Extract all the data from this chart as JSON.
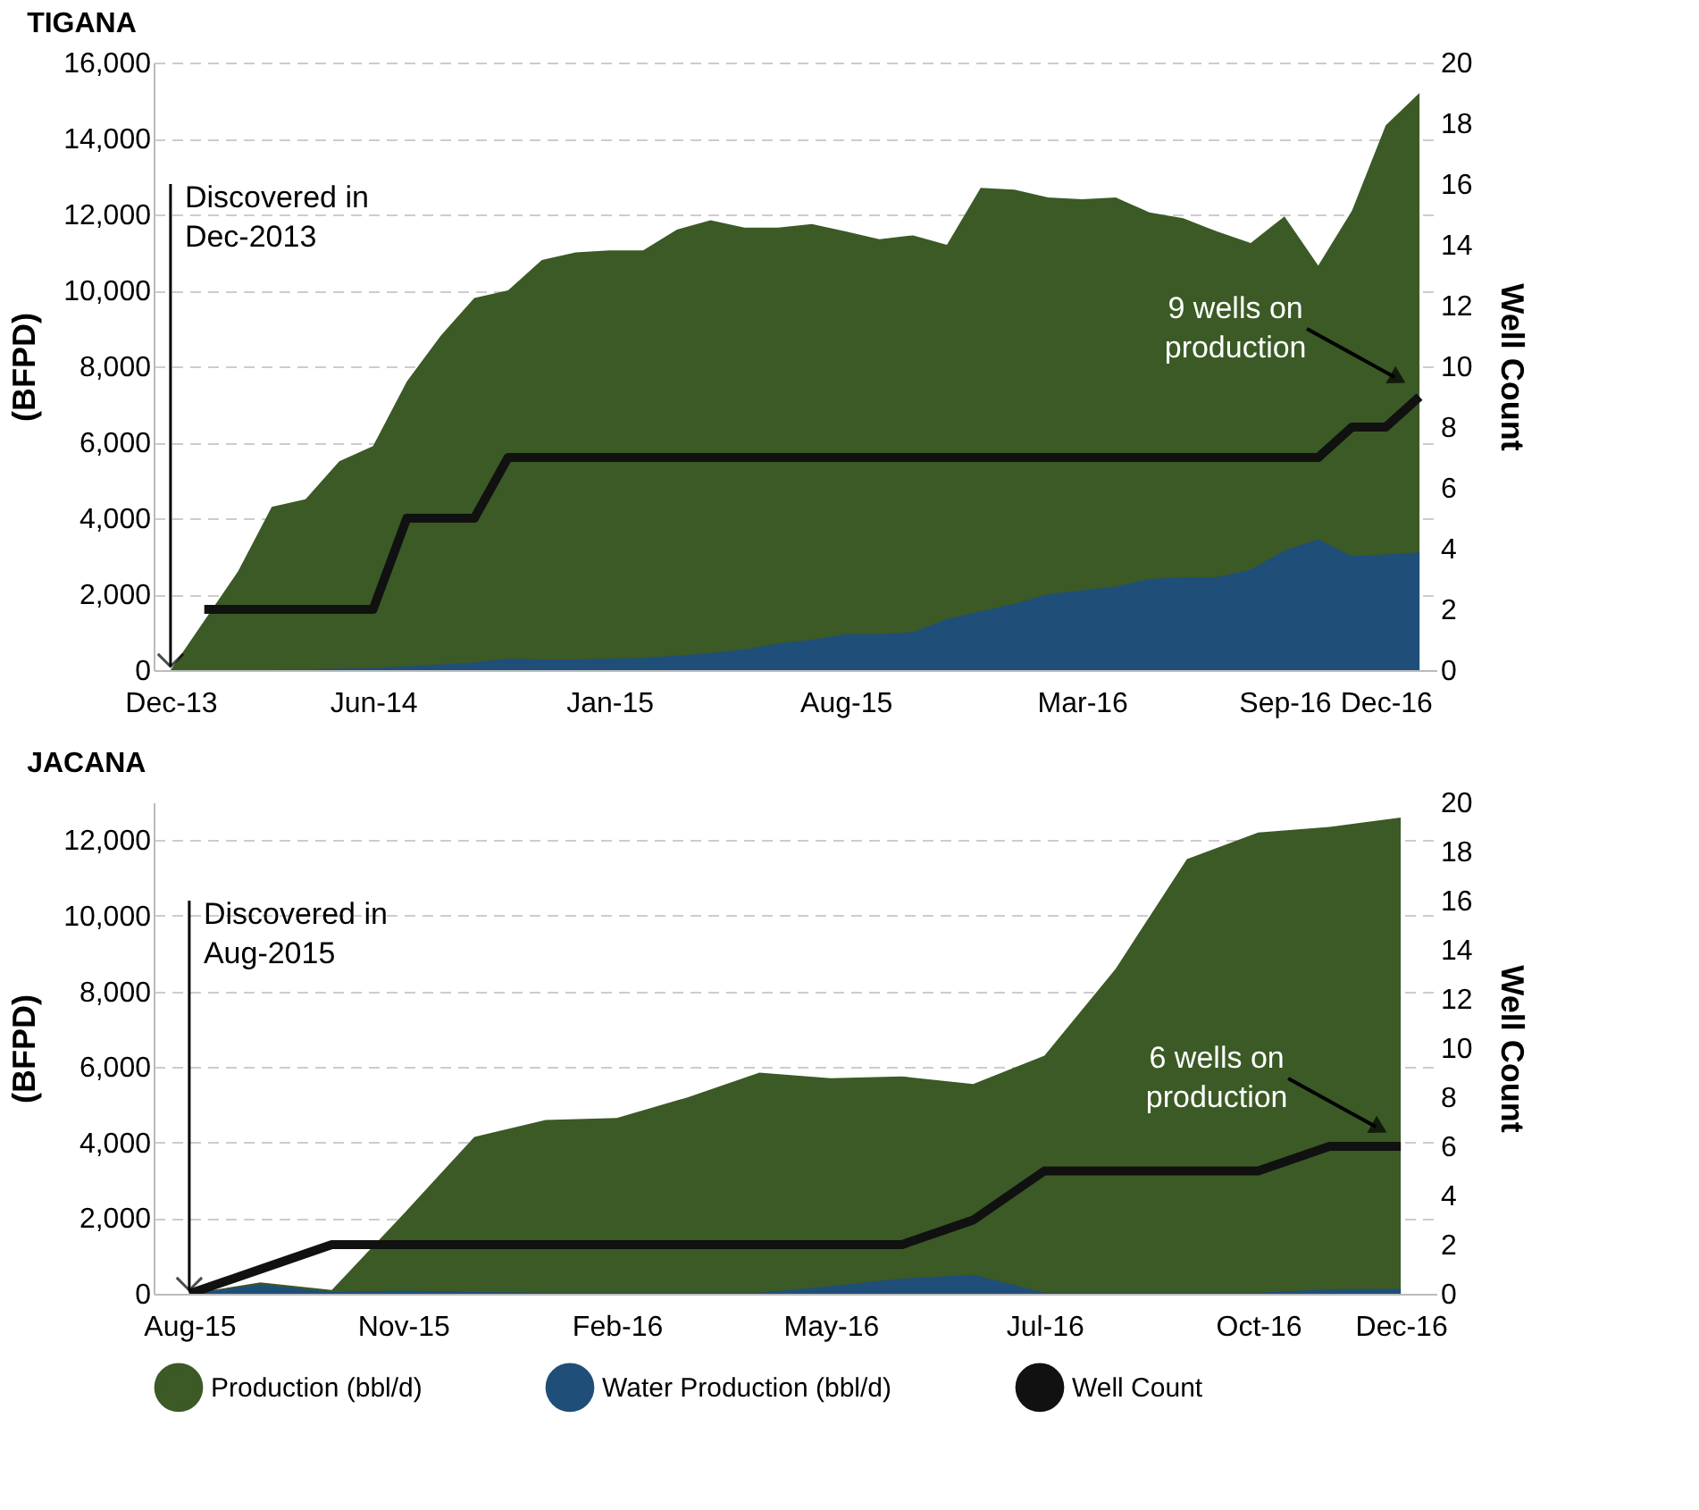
{
  "chart_data": [
    {
      "type": "area",
      "title": "TIGANA",
      "ylabel": "(BFPD)",
      "y2label": "Well Count",
      "categories": [
        "Dec-13",
        null,
        null,
        null,
        null,
        null,
        "Jun-14",
        null,
        null,
        null,
        null,
        null,
        null,
        "Jan-15",
        null,
        null,
        null,
        null,
        null,
        null,
        "Aug-15",
        null,
        null,
        null,
        null,
        null,
        null,
        "Mar-16",
        null,
        null,
        null,
        null,
        null,
        "Sep-16",
        null,
        null,
        "Dec-16",
        null
      ],
      "series": [
        {
          "type": "area",
          "color": "#3b5a25",
          "values": [
            0,
            1300,
            2600,
            4300,
            4500,
            5500,
            5900,
            7600,
            8800,
            9800,
            10000,
            10800,
            11000,
            11050,
            11050,
            11600,
            11850,
            11650,
            11650,
            11750,
            11550,
            11350,
            11450,
            11200,
            12700,
            12650,
            12450,
            12400,
            12450,
            12050,
            11900,
            11550,
            11250,
            11950,
            10650,
            12100,
            14350,
            15200
          ]
        },
        {
          "type": "area",
          "color": "#1f4e79",
          "values": [
            0,
            0,
            0,
            0,
            20,
            40,
            60,
            100,
            150,
            200,
            300,
            280,
            280,
            300,
            320,
            380,
            450,
            550,
            700,
            800,
            950,
            950,
            1000,
            1350,
            1550,
            1750,
            2000,
            2100,
            2200,
            2400,
            2450,
            2450,
            2650,
            3150,
            3450,
            3000,
            3050,
            3100
          ]
        },
        {
          "type": "line",
          "axis": "y2",
          "color": "#111111",
          "values": [
            null,
            2,
            2,
            2,
            2,
            2,
            2,
            5,
            5,
            5,
            7,
            7,
            7,
            7,
            7,
            7,
            7,
            7,
            7,
            7,
            7,
            7,
            7,
            7,
            7,
            7,
            7,
            7,
            7,
            7,
            7,
            7,
            7,
            7,
            7,
            8,
            8,
            9
          ]
        }
      ],
      "ylim": [
        0,
        16000
      ],
      "yticks": [
        0,
        {
          "value": 2000,
          "label": "2,000"
        },
        {
          "value": 4000,
          "label": "4,000"
        },
        {
          "value": 6000,
          "label": "6,000"
        },
        {
          "value": 8000,
          "label": "8,000"
        },
        {
          "value": 10000,
          "label": "10,000"
        },
        {
          "value": 12000,
          "label": "12,000"
        },
        {
          "value": 14000,
          "label": "14,000"
        },
        {
          "value": 16000,
          "label": "16,000"
        }
      ],
      "y2lim": [
        0,
        20
      ],
      "y2ticks": [
        0,
        2,
        4,
        6,
        8,
        10,
        12,
        14,
        16,
        18,
        20
      ],
      "grid": "y",
      "line_style": "solid",
      "annotations": [
        {
          "text": "Discovered in\nDec-2013",
          "x": "Dec-13",
          "y": 0
        },
        "9 wells on\nproduction"
      ]
    },
    {
      "type": "area",
      "title": "JACANA",
      "ylabel": "(BFPD)",
      "y2label": "Well Count",
      "categories": [
        "Aug-15",
        null,
        null,
        "Nov-15",
        null,
        null,
        "Feb-16",
        null,
        null,
        "May-16",
        null,
        null,
        "Jul-16",
        null,
        null,
        "Oct-16",
        null,
        "Dec-16"
      ],
      "series": [
        {
          "name": "Production (bbl/d)",
          "type": "area",
          "color": "#3b5a25",
          "values": [
            0,
            300,
            100,
            2100,
            4150,
            4600,
            4650,
            5200,
            5850,
            5700,
            5750,
            5550,
            6300,
            8600,
            11500,
            12200,
            12350,
            12600
          ]
        },
        {
          "name": "Water Production (bbl/d)",
          "type": "area",
          "color": "#1f4e79",
          "values": [
            0,
            250,
            50,
            80,
            50,
            30,
            30,
            30,
            30,
            200,
            400,
            500,
            30,
            30,
            30,
            30,
            120,
            130
          ]
        },
        {
          "name": "Well Count",
          "type": "line",
          "axis": "y2",
          "color": "#111111",
          "values": [
            0,
            1,
            2,
            2,
            2,
            2,
            2,
            2,
            2,
            2,
            2,
            3,
            5,
            5,
            5,
            5,
            6,
            6
          ]
        }
      ],
      "ylim": [
        0,
        13000
      ],
      "yticks": [
        0,
        {
          "value": 2000,
          "label": "2,000"
        },
        {
          "value": 4000,
          "label": "4,000"
        },
        {
          "value": 6000,
          "label": "6,000"
        },
        {
          "value": 8000,
          "label": "8,000"
        },
        {
          "value": 10000,
          "label": "10,000"
        },
        {
          "value": 12000,
          "label": "12,000"
        }
      ],
      "y2lim": [
        0,
        20
      ],
      "y2ticks": [
        0,
        2,
        4,
        6,
        8,
        10,
        12,
        14,
        16,
        18,
        20
      ],
      "grid": "y",
      "legend": "bottom",
      "line_style": "solid",
      "annotations": [
        {
          "text": "Discovered in\nAug-2015",
          "x": "Aug-15",
          "y": 0
        },
        "6 wells on\nproduction"
      ]
    }
  ]
}
